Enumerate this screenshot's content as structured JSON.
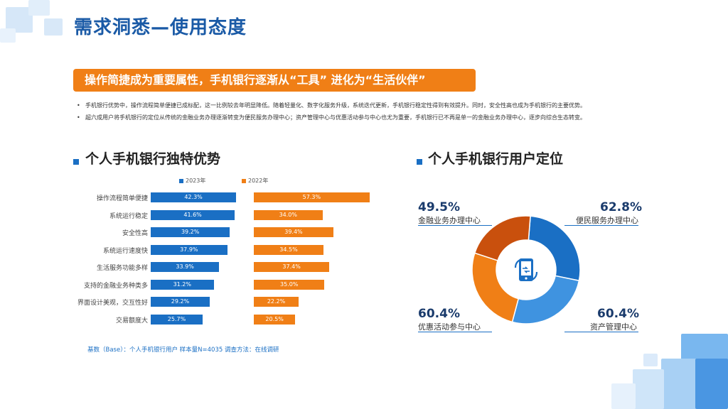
{
  "title": "需求洞悉—使用态度",
  "banner": "操作简捷成为重要属性，手机银行逐渐从“工具” 进化为“生活伙伴”",
  "bullets": [
    "手机银行优势中，操作流程简单便捷已成标配，这一比例较去年明显降低。随着轻量化、数字化服务升级，系统迭代更新，手机银行稳定性得到有效提升。同时，安全性高也成为手机银行的主要优势。",
    "超六成用户将手机银行的定位从传统的金融业务办理逐渐转变为便民服务办理中心；资产管理中心与优惠活动参与中心也尤为重要，手机银行已不再是单一的金融业务办理中心，逐步向综合生态转变。"
  ],
  "left_section_title": "个人手机银行独特优势",
  "right_section_title": "个人手机银行用户定位",
  "footnote": "基数（Base）：个人手机银行用户  样本量N=4035  调查方法：在线调研",
  "colors": {
    "blue": "#1a6fc4",
    "orange": "#f07f16",
    "title": "#1a5aa6"
  },
  "chart_data": [
    {
      "type": "bar",
      "categories": [
        "操作流程简单便捷",
        "系统运行稳定",
        "安全性高",
        "系统运行速度快",
        "生活服务功能多样",
        "支持的金融业务种类多",
        "界面设计美观，交互性好",
        "交易额度大"
      ],
      "series": [
        {
          "name": "2023年",
          "values": [
            42.3,
            41.6,
            39.2,
            37.9,
            33.9,
            31.2,
            29.2,
            25.7
          ],
          "labels": [
            "42.3%",
            "41.6%",
            "39.2%",
            "37.9%",
            "33.9%",
            "31.2%",
            "29.2%",
            "25.7%"
          ]
        },
        {
          "name": "2022年",
          "values": [
            57.3,
            34.0,
            39.4,
            34.5,
            37.4,
            35.0,
            22.2,
            20.5
          ],
          "labels": [
            "57.3%",
            "34.0%",
            "39.4%",
            "34.5%",
            "37.4%",
            "35.0%",
            "22.2%",
            "20.5%"
          ]
        }
      ]
    },
    {
      "type": "pie",
      "categories": [
        "便民服务办理中心",
        "资产管理中心",
        "优惠活动参与中心",
        "金融业务办理中心"
      ],
      "values": [
        62.8,
        60.4,
        60.4,
        49.5
      ],
      "labels": [
        "62.8%",
        "60.4%",
        "60.4%",
        "49.5%"
      ],
      "colors": [
        "#1a6fc4",
        "#3f93e0",
        "#f07f16",
        "#c9500d"
      ]
    }
  ]
}
